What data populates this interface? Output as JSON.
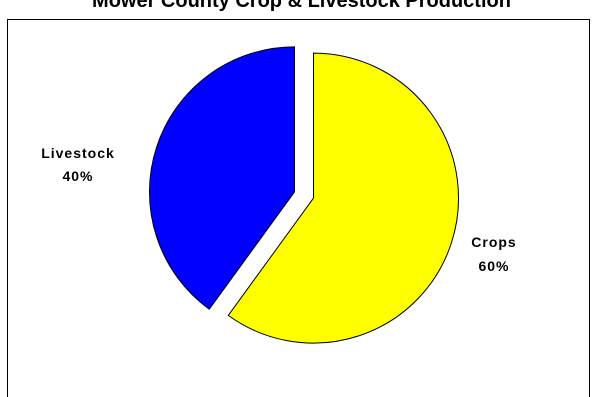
{
  "chart_data": {
    "type": "pie",
    "title": "Mower County Crop & Livestock Production",
    "slices": [
      {
        "name": "Crops",
        "label": "Crops",
        "value": 60,
        "value_label": "60%",
        "color": "#ffff00",
        "exploded": true
      },
      {
        "name": "Livestock",
        "label": "Livestock",
        "value": 40,
        "value_label": "40%",
        "color": "#0000ff",
        "exploded": true
      }
    ],
    "legend": "none"
  }
}
